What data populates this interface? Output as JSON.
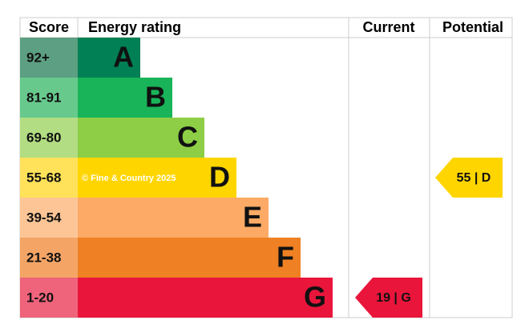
{
  "header": {
    "score": "Score",
    "rating": "Energy rating",
    "current": "Current",
    "potential": "Potential"
  },
  "bands": [
    {
      "score": "92+",
      "letter": "A",
      "color": "#008054",
      "light": "#5c9f82"
    },
    {
      "score": "81-91",
      "letter": "B",
      "color": "#19b459",
      "light": "#68c98d"
    },
    {
      "score": "69-80",
      "letter": "C",
      "color": "#8dce46",
      "light": "#b2dd82"
    },
    {
      "score": "55-68",
      "letter": "D",
      "color": "#ffd500",
      "light": "#ffe25a"
    },
    {
      "score": "39-54",
      "letter": "E",
      "color": "#fcaa65",
      "light": "#fdc596"
    },
    {
      "score": "21-38",
      "letter": "F",
      "color": "#ef8023",
      "light": "#f4a566"
    },
    {
      "score": "1-20",
      "letter": "G",
      "color": "#e9153b",
      "light": "#ef637b"
    }
  ],
  "current": {
    "label": "19 | G",
    "color": "#e9153b"
  },
  "potential": {
    "label": "55 | D",
    "color": "#ffd500"
  },
  "watermark": "© Fine & Country 2025"
}
